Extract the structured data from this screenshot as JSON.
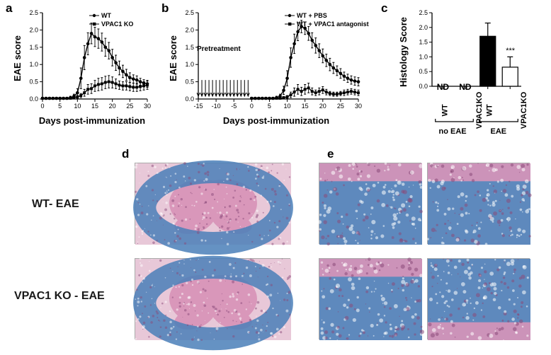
{
  "panels": {
    "a": {
      "label": "a"
    },
    "b": {
      "label": "b"
    },
    "c": {
      "label": "c"
    },
    "d": {
      "label": "d"
    },
    "e": {
      "label": "e"
    }
  },
  "chartA": {
    "type": "line",
    "title": "",
    "xlabel": "Days post-immunization",
    "ylabel": "EAE score",
    "xlim": [
      0,
      30
    ],
    "ylim": [
      0,
      2.5
    ],
    "xtick_step": 5,
    "ytick_step": 0.5,
    "series": [
      {
        "name": "WT",
        "marker": "circle",
        "color": "#000000",
        "x": [
          0,
          1,
          2,
          3,
          4,
          5,
          6,
          7,
          8,
          9,
          10,
          11,
          12,
          13,
          14,
          15,
          16,
          17,
          18,
          19,
          20,
          21,
          22,
          23,
          24,
          25,
          26,
          27,
          28,
          29,
          30
        ],
        "y": [
          0.02,
          0.02,
          0.02,
          0.02,
          0.02,
          0.02,
          0.02,
          0.02,
          0.04,
          0.08,
          0.18,
          0.6,
          1.2,
          1.6,
          1.9,
          1.8,
          1.75,
          1.65,
          1.5,
          1.4,
          1.2,
          1.05,
          0.9,
          0.8,
          0.7,
          0.62,
          0.58,
          0.55,
          0.5,
          0.46,
          0.44
        ],
        "err": [
          0.02,
          0.02,
          0.02,
          0.02,
          0.02,
          0.02,
          0.02,
          0.02,
          0.04,
          0.06,
          0.12,
          0.3,
          0.35,
          0.32,
          0.3,
          0.28,
          0.28,
          0.26,
          0.26,
          0.24,
          0.24,
          0.22,
          0.2,
          0.18,
          0.16,
          0.14,
          0.12,
          0.12,
          0.1,
          0.1,
          0.1
        ]
      },
      {
        "name": "VPAC1 KO",
        "marker": "square",
        "color": "#000000",
        "x": [
          0,
          1,
          2,
          3,
          4,
          5,
          6,
          7,
          8,
          9,
          10,
          11,
          12,
          13,
          14,
          15,
          16,
          17,
          18,
          19,
          20,
          21,
          22,
          23,
          24,
          25,
          26,
          27,
          28,
          29,
          30
        ],
        "y": [
          0.02,
          0.02,
          0.02,
          0.02,
          0.02,
          0.02,
          0.02,
          0.02,
          0.02,
          0.04,
          0.06,
          0.1,
          0.18,
          0.28,
          0.3,
          0.38,
          0.42,
          0.44,
          0.48,
          0.5,
          0.48,
          0.44,
          0.4,
          0.38,
          0.38,
          0.36,
          0.34,
          0.34,
          0.36,
          0.38,
          0.4
        ],
        "err": [
          0.02,
          0.02,
          0.02,
          0.02,
          0.02,
          0.02,
          0.02,
          0.02,
          0.02,
          0.03,
          0.04,
          0.06,
          0.1,
          0.14,
          0.14,
          0.16,
          0.18,
          0.18,
          0.18,
          0.18,
          0.16,
          0.14,
          0.12,
          0.12,
          0.12,
          0.12,
          0.12,
          0.12,
          0.12,
          0.12,
          0.12
        ]
      }
    ],
    "line_width": 1.4,
    "marker_size": 3,
    "background_color": "#ffffff",
    "axis_color": "#000000"
  },
  "chartB": {
    "type": "line",
    "title": "",
    "xlabel": "Days post-immunization",
    "ylabel": "EAE score",
    "xlim": [
      -15,
      30
    ],
    "ylim": [
      0,
      2.5
    ],
    "xtick_step": 5,
    "ytick_step": 0.5,
    "pretreatment_label": "Pretreatment",
    "arrow_days": [
      -15,
      -14,
      -13,
      -12,
      -11,
      -10,
      -9,
      -8,
      -7,
      -6,
      -5,
      -4,
      -3,
      -2,
      -1
    ],
    "series": [
      {
        "name": "WT + PBS",
        "marker": "circle",
        "color": "#000000",
        "x": [
          0,
          1,
          2,
          3,
          4,
          5,
          6,
          7,
          8,
          9,
          10,
          11,
          12,
          13,
          14,
          15,
          16,
          17,
          18,
          19,
          20,
          21,
          22,
          23,
          24,
          25,
          26,
          27,
          28,
          29,
          30
        ],
        "y": [
          0.02,
          0.02,
          0.02,
          0.02,
          0.02,
          0.02,
          0.02,
          0.04,
          0.08,
          0.25,
          0.6,
          1.2,
          1.6,
          1.95,
          2.1,
          2.05,
          1.9,
          1.7,
          1.55,
          1.4,
          1.25,
          1.12,
          1.0,
          0.9,
          0.82,
          0.74,
          0.66,
          0.6,
          0.55,
          0.52,
          0.5
        ],
        "err": [
          0.02,
          0.02,
          0.02,
          0.02,
          0.02,
          0.02,
          0.02,
          0.04,
          0.06,
          0.12,
          0.22,
          0.28,
          0.28,
          0.26,
          0.18,
          0.18,
          0.2,
          0.22,
          0.22,
          0.2,
          0.2,
          0.18,
          0.18,
          0.16,
          0.14,
          0.14,
          0.12,
          0.12,
          0.12,
          0.12,
          0.12
        ]
      },
      {
        "name": "WT + VPAC1 antagonist",
        "marker": "square",
        "color": "#000000",
        "x": [
          0,
          1,
          2,
          3,
          4,
          5,
          6,
          7,
          8,
          9,
          10,
          11,
          12,
          13,
          14,
          15,
          16,
          17,
          18,
          19,
          20,
          21,
          22,
          23,
          24,
          25,
          26,
          27,
          28,
          29,
          30
        ],
        "y": [
          0.02,
          0.02,
          0.02,
          0.02,
          0.02,
          0.02,
          0.02,
          0.02,
          0.02,
          0.04,
          0.06,
          0.12,
          0.2,
          0.28,
          0.22,
          0.28,
          0.32,
          0.22,
          0.18,
          0.22,
          0.26,
          0.2,
          0.16,
          0.14,
          0.14,
          0.16,
          0.18,
          0.2,
          0.22,
          0.2,
          0.18
        ],
        "err": [
          0.02,
          0.02,
          0.02,
          0.02,
          0.02,
          0.02,
          0.02,
          0.02,
          0.02,
          0.03,
          0.04,
          0.08,
          0.12,
          0.14,
          0.12,
          0.14,
          0.14,
          0.1,
          0.08,
          0.1,
          0.1,
          0.08,
          0.06,
          0.06,
          0.06,
          0.06,
          0.08,
          0.08,
          0.08,
          0.08,
          0.08
        ]
      }
    ],
    "line_width": 1.4,
    "marker_size": 3,
    "background_color": "#ffffff",
    "axis_color": "#000000"
  },
  "chartC": {
    "type": "bar",
    "title": "",
    "ylabel": "Histology Score",
    "ylim": [
      0,
      2.5
    ],
    "ytick_step": 0.5,
    "categories": [
      "WT",
      "VPAC1KO",
      "WT",
      "VPAC1KO"
    ],
    "groups": [
      "no EAE",
      "no EAE",
      "EAE",
      "EAE"
    ],
    "group_labels": [
      "no EAE",
      "EAE"
    ],
    "values": [
      0,
      0,
      1.7,
      0.65
    ],
    "errors": [
      0,
      0,
      0.45,
      0.35
    ],
    "nd_flags": [
      true,
      true,
      false,
      false
    ],
    "nd_text": "ND",
    "bar_colors": [
      "#ffffff",
      "#ffffff",
      "#000000",
      "#ffffff"
    ],
    "bar_width": 0.7,
    "significance": "***",
    "axis_color": "#000000",
    "background_color": "#ffffff"
  },
  "images": {
    "row1_label": "WT- EAE",
    "row2_label": "VPAC1 KO - EAE",
    "tissue_pink": "#d895b8",
    "tissue_blue": "#4a7fb8",
    "tissue_dark": "#8a4a7a",
    "tissue_light": "#e8c8d8"
  }
}
